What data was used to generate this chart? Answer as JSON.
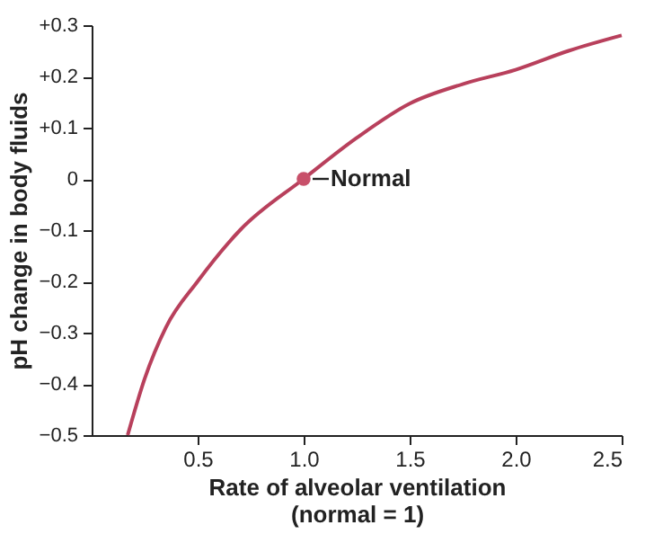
{
  "chart_data": {
    "type": "line",
    "xlabel": "Rate of alveolar ventilation\n(normal = 1)",
    "ylabel": "pH change in body fluids",
    "xlim": [
      0,
      2.5
    ],
    "ylim": [
      -0.5,
      0.3
    ],
    "xticks": [
      0.5,
      {
        "value": 1,
        "label": "1.0"
      },
      1.5,
      {
        "value": 2,
        "label": "2.0"
      },
      2.5
    ],
    "yticks": [
      {
        "value": 0.3,
        "label": "+0.3"
      },
      {
        "value": 0.2,
        "label": "+0.2"
      },
      {
        "value": 0.1,
        "label": "+0.1"
      },
      0,
      {
        "value": -0.1,
        "label": "−0.1"
      },
      {
        "value": -0.2,
        "label": "−0.2"
      },
      {
        "value": -0.3,
        "label": "−0.3"
      },
      {
        "value": -0.4,
        "label": "−0.4"
      },
      {
        "value": -0.5,
        "label": "−0.5"
      }
    ],
    "grid": false,
    "marker": "none",
    "line_style": "solid",
    "series": [
      {
        "color": "#b8405c",
        "x": [
          0.17,
          0.25,
          0.35,
          0.5,
          0.7,
          1.0,
          1.25,
          1.5,
          1.75,
          2.0,
          2.25,
          2.5
        ],
        "values": [
          -0.5,
          -0.39,
          -0.29,
          -0.2,
          -0.1,
          0,
          0.08,
          0.147,
          0.185,
          0.213,
          0.25,
          0.28
        ]
      },
      {
        "type": "scatter",
        "marker": "circle",
        "color": "#c8506a",
        "x": [
          1.0
        ],
        "values": [
          0
        ]
      }
    ],
    "annotations": [
      {
        "text": "Normal",
        "x": 1.0,
        "y": 0
      }
    ]
  }
}
